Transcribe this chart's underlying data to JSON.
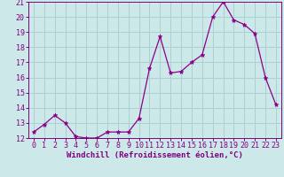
{
  "x": [
    0,
    1,
    2,
    3,
    4,
    5,
    6,
    7,
    8,
    9,
    10,
    11,
    12,
    13,
    14,
    15,
    16,
    17,
    18,
    19,
    20,
    21,
    22,
    23
  ],
  "y": [
    12.4,
    12.9,
    13.5,
    13.0,
    12.1,
    12.0,
    12.0,
    12.4,
    12.4,
    12.4,
    13.3,
    16.6,
    18.7,
    16.3,
    16.4,
    17.0,
    17.5,
    20.0,
    21.0,
    19.8,
    19.5,
    18.9,
    16.0,
    14.2
  ],
  "line_color": "#8B008B",
  "marker": "*",
  "marker_color": "#8B008B",
  "bg_color": "#cce8e8",
  "grid_color": "#aad0d0",
  "xlabel": "Windchill (Refroidissement éolien,°C)",
  "xlim": [
    -0.5,
    23.5
  ],
  "ylim": [
    12,
    21
  ],
  "yticks": [
    12,
    13,
    14,
    15,
    16,
    17,
    18,
    19,
    20,
    21
  ],
  "xticks": [
    0,
    1,
    2,
    3,
    4,
    5,
    6,
    7,
    8,
    9,
    10,
    11,
    12,
    13,
    14,
    15,
    16,
    17,
    18,
    19,
    20,
    21,
    22,
    23
  ],
  "tick_color": "#800080",
  "label_color": "#800080",
  "tick_fontsize": 6.0,
  "xlabel_fontsize": 6.5
}
